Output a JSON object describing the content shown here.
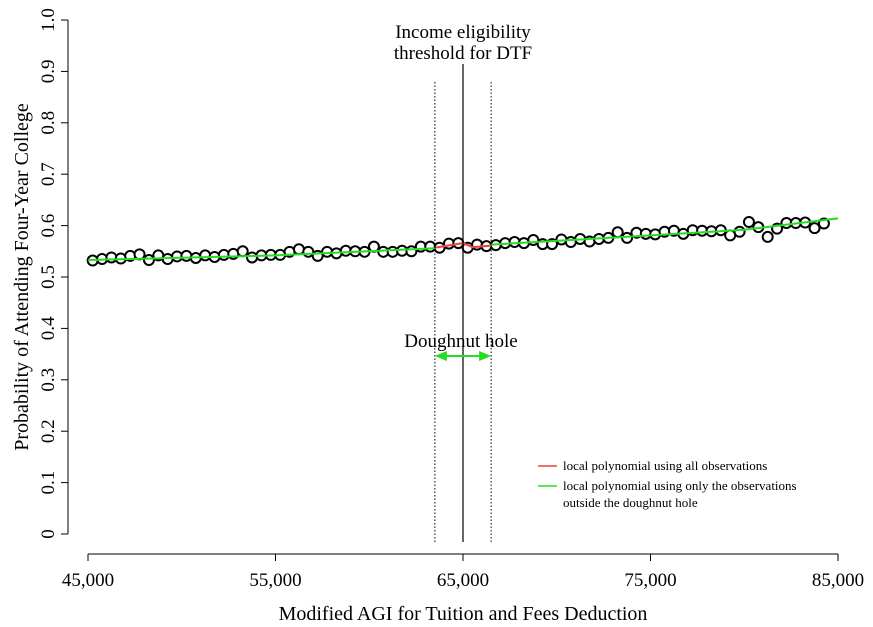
{
  "chart_data": {
    "type": "scatter",
    "xlabel": "Modified AGI for Tuition and Fees Deduction",
    "ylabel": "Probability of Attending Four-Year College",
    "xlim": [
      45000,
      85000
    ],
    "ylim": [
      0,
      1.0
    ],
    "x_ticks": [
      45000,
      55000,
      65000,
      75000,
      85000
    ],
    "x_tick_labels": [
      "45,000",
      "55,000",
      "65,000",
      "75,000",
      "85,000"
    ],
    "y_ticks": [
      0,
      0.1,
      0.2,
      0.3,
      0.4,
      0.5,
      0.6,
      0.7,
      0.8,
      0.9,
      1.0
    ],
    "y_tick_labels": [
      "0",
      "0.1",
      "0.2",
      "0.3",
      "0.4",
      "0.5",
      "0.6",
      "0.7",
      "0.8",
      "0.9",
      "1.0"
    ],
    "grid": false,
    "threshold": {
      "x": 65000,
      "label_line1": "Income eligibility",
      "label_line2": "threshold for DTF"
    },
    "doughnut": {
      "x_min": 63500,
      "x_max": 66500,
      "label": "Doughnut hole"
    },
    "legend": {
      "placement": "bottom-right",
      "entries": [
        {
          "label": "local polynomial using all observations",
          "color": "#e8453c"
        },
        {
          "label": "local polynomial using only the observations",
          "label2": "outside the doughnut hole",
          "color": "#22dd22"
        }
      ]
    },
    "colors": {
      "points": "#000000",
      "fit_all": "#e8453c",
      "fit_outside": "#22dd22",
      "arrow": "#22dd22"
    },
    "points": {
      "x": [
        45250,
        45750,
        46250,
        46750,
        47250,
        47750,
        48250,
        48750,
        49250,
        49750,
        50250,
        50750,
        51250,
        51750,
        52250,
        52750,
        53250,
        53750,
        54250,
        54750,
        55250,
        55750,
        56250,
        56750,
        57250,
        57750,
        58250,
        58750,
        59250,
        59750,
        60250,
        60750,
        61250,
        61750,
        62250,
        62750,
        63250,
        63750,
        64250,
        64750,
        65250,
        65750,
        66250,
        66750,
        67250,
        67750,
        68250,
        68750,
        69250,
        69750,
        70250,
        70750,
        71250,
        71750,
        72250,
        72750,
        73250,
        73750,
        74250,
        74750,
        75250,
        75750,
        76250,
        76750,
        77250,
        77750,
        78250,
        78750,
        79250,
        79750,
        80250,
        80750,
        81250,
        81750,
        82250,
        82750,
        83250,
        83750,
        84250
      ],
      "y": [
        0.532,
        0.535,
        0.538,
        0.536,
        0.541,
        0.544,
        0.533,
        0.542,
        0.535,
        0.54,
        0.541,
        0.537,
        0.542,
        0.539,
        0.543,
        0.545,
        0.55,
        0.538,
        0.542,
        0.543,
        0.543,
        0.549,
        0.554,
        0.549,
        0.541,
        0.549,
        0.546,
        0.551,
        0.55,
        0.549,
        0.559,
        0.549,
        0.549,
        0.551,
        0.55,
        0.559,
        0.559,
        0.557,
        0.565,
        0.566,
        0.557,
        0.563,
        0.56,
        0.562,
        0.566,
        0.568,
        0.566,
        0.572,
        0.564,
        0.564,
        0.573,
        0.568,
        0.574,
        0.569,
        0.574,
        0.576,
        0.587,
        0.576,
        0.586,
        0.584,
        0.583,
        0.588,
        0.59,
        0.584,
        0.591,
        0.59,
        0.589,
        0.591,
        0.581,
        0.588,
        0.607,
        0.597,
        0.578,
        0.594,
        0.605,
        0.605,
        0.606,
        0.595,
        0.604
      ]
    },
    "fit_outside_line": {
      "x": [
        45000,
        55000,
        63500,
        66500,
        75000,
        80000,
        85000
      ],
      "y": [
        0.533,
        0.542,
        0.556,
        0.563,
        0.581,
        0.592,
        0.614
      ]
    },
    "fit_all_line": {
      "x": [
        63500,
        64500,
        65000,
        65500,
        66500
      ],
      "y": [
        0.557,
        0.563,
        0.566,
        0.558,
        0.561
      ]
    }
  }
}
